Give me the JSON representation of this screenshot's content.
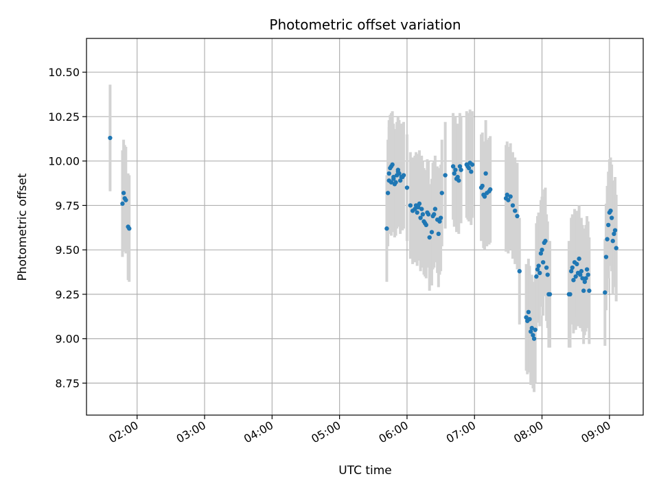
{
  "chart_data": {
    "type": "scatter",
    "title": "Photometric offset variation",
    "xlabel": "UTC time",
    "ylabel": "Photometric offset",
    "grid": true,
    "xlim": [
      "01:15",
      "09:30"
    ],
    "ylim": [
      8.57,
      10.69
    ],
    "x_ticks": [
      "02:00",
      "03:00",
      "04:00",
      "05:00",
      "06:00",
      "07:00",
      "08:00",
      "09:00"
    ],
    "y_ticks": [
      "8.75",
      "9.00",
      "9.25",
      "9.50",
      "9.75",
      "10.00",
      "10.25",
      "10.50"
    ],
    "colors": {
      "marker": "#1f77b4",
      "errorbar": "#d3d3d3",
      "grid": "#b0b0b0"
    },
    "series": [
      {
        "x": [
          "01:36",
          "01:47",
          "01:48",
          "01:49",
          "01:50",
          "01:52",
          "01:53",
          "05:42",
          "05:43",
          "05:44",
          "05:44",
          "05:45",
          "05:46",
          "05:46",
          "05:47",
          "05:48",
          "05:48",
          "05:49",
          "05:50",
          "05:51",
          "05:52",
          "05:52",
          "05:53",
          "05:54",
          "05:55",
          "05:56",
          "05:57",
          "06:00",
          "06:03",
          "06:05",
          "06:07",
          "06:08",
          "06:09",
          "06:10",
          "06:11",
          "06:12",
          "06:13",
          "06:14",
          "06:15",
          "06:16",
          "06:17",
          "06:18",
          "06:19",
          "06:20",
          "06:22",
          "06:23",
          "06:24",
          "06:25",
          "06:27",
          "06:28",
          "06:29",
          "06:30",
          "06:31",
          "06:34",
          "06:41",
          "06:42",
          "06:43",
          "06:44",
          "06:45",
          "06:46",
          "06:47",
          "06:48",
          "06:53",
          "06:54",
          "06:55",
          "06:56",
          "06:57",
          "06:58",
          "07:06",
          "07:07",
          "07:08",
          "07:09",
          "07:10",
          "07:11",
          "07:13",
          "07:14",
          "07:28",
          "07:29",
          "07:30",
          "07:32",
          "07:34",
          "07:36",
          "07:38",
          "07:40",
          "07:46",
          "07:47",
          "07:48",
          "07:49",
          "07:50",
          "07:51",
          "07:52",
          "07:53",
          "07:54",
          "07:55",
          "07:56",
          "07:57",
          "07:58",
          "07:59",
          "08:00",
          "08:01",
          "08:02",
          "08:03",
          "08:04",
          "08:05",
          "08:06",
          "08:07",
          "08:24",
          "08:25",
          "08:26",
          "08:27",
          "08:28",
          "08:29",
          "08:30",
          "08:31",
          "08:32",
          "08:33",
          "08:34",
          "08:35",
          "08:36",
          "08:37",
          "08:38",
          "08:39",
          "08:40",
          "08:41",
          "08:42",
          "08:56",
          "08:57",
          "08:58",
          "08:59",
          "09:00",
          "09:01",
          "09:02",
          "09:03",
          "09:04",
          "09:05",
          "09:06"
        ],
        "y": [
          10.13,
          9.76,
          9.82,
          9.79,
          9.78,
          9.63,
          9.62,
          9.62,
          9.82,
          9.89,
          9.93,
          9.96,
          9.97,
          9.88,
          9.98,
          9.91,
          9.9,
          9.87,
          9.88,
          9.92,
          9.94,
          9.95,
          9.93,
          9.89,
          9.91,
          9.91,
          9.92,
          9.85,
          9.75,
          9.72,
          9.73,
          9.75,
          9.71,
          9.74,
          9.76,
          9.68,
          9.73,
          9.7,
          9.66,
          9.65,
          9.64,
          9.71,
          9.7,
          9.57,
          9.6,
          9.69,
          9.7,
          9.73,
          9.67,
          9.59,
          9.66,
          9.68,
          9.82,
          9.92,
          9.97,
          9.93,
          9.95,
          9.9,
          9.91,
          9.89,
          9.97,
          9.95,
          9.98,
          9.97,
          9.96,
          9.99,
          9.94,
          9.98,
          9.85,
          9.86,
          9.81,
          9.8,
          9.93,
          9.82,
          9.83,
          9.84,
          9.79,
          9.81,
          9.78,
          9.8,
          9.75,
          9.72,
          9.69,
          9.38,
          9.12,
          9.1,
          9.15,
          9.11,
          9.04,
          9.06,
          9.02,
          9.0,
          9.05,
          9.35,
          9.39,
          9.41,
          9.37,
          9.48,
          9.5,
          9.43,
          9.54,
          9.55,
          9.4,
          9.36,
          9.25,
          9.25,
          9.25,
          9.25,
          9.38,
          9.4,
          9.33,
          9.43,
          9.35,
          9.42,
          9.37,
          9.45,
          9.36,
          9.38,
          9.34,
          9.27,
          9.32,
          9.34,
          9.39,
          9.36,
          9.27,
          9.26,
          9.46,
          9.56,
          9.64,
          9.71,
          9.72,
          9.68,
          9.55,
          9.59,
          9.61,
          9.51
        ],
        "yerr": 0.3
      }
    ]
  }
}
